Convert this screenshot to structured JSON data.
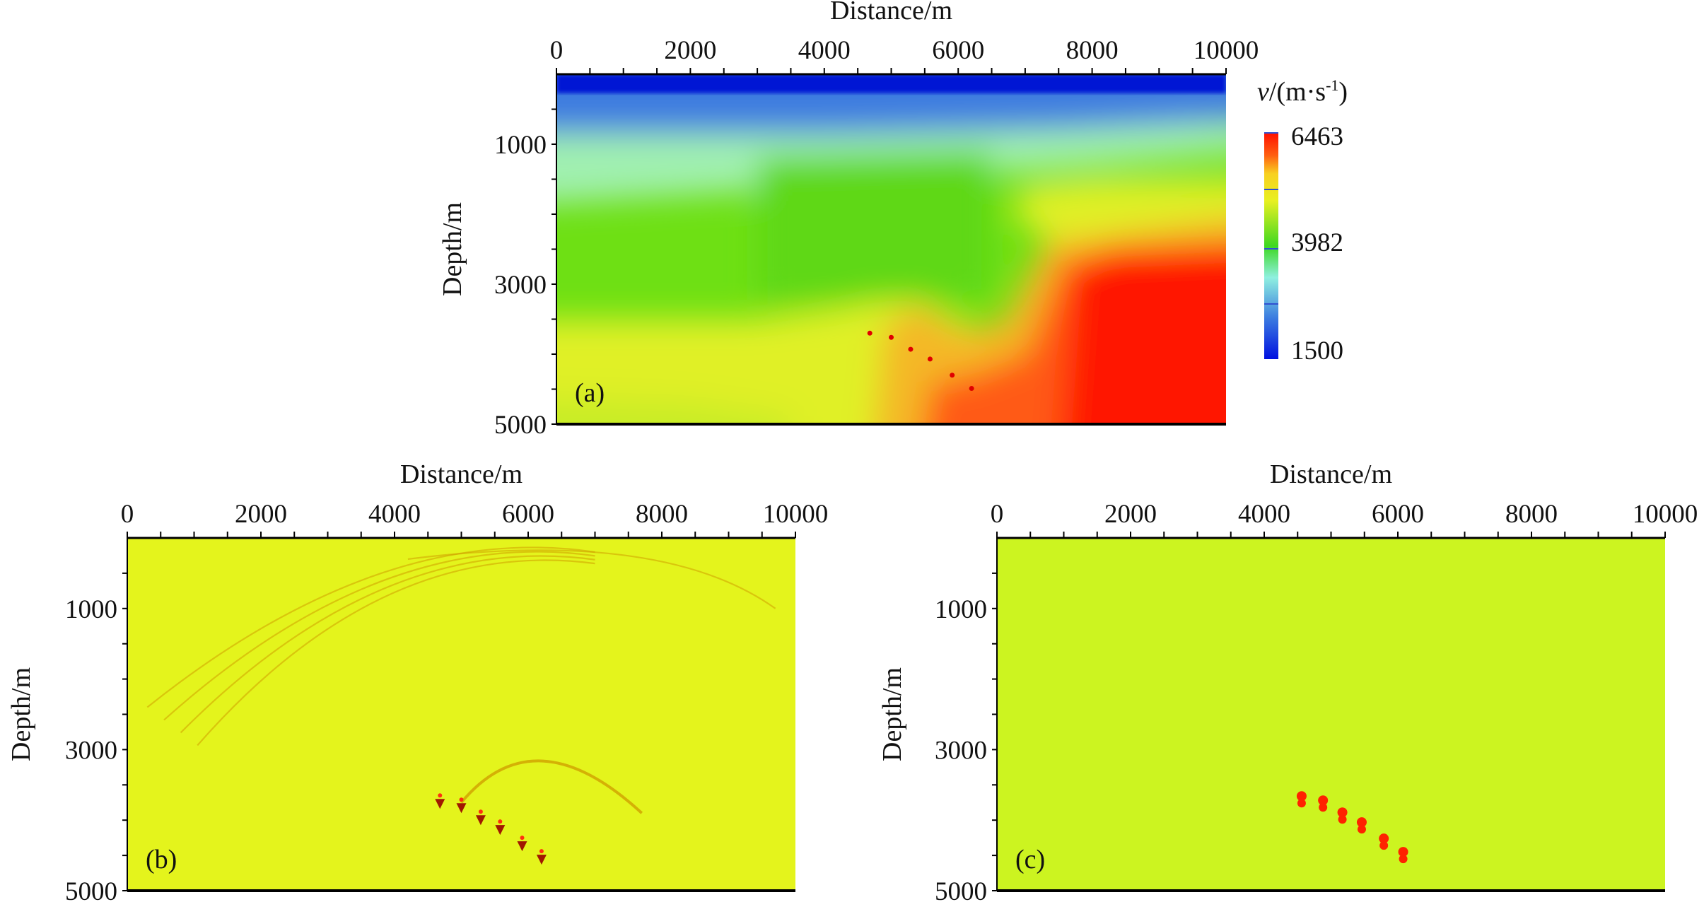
{
  "chart_data": [
    {
      "type": "heatmap",
      "panel_label": "(a)",
      "xlabel": "Distance/m",
      "ylabel": "Depth/m",
      "xlim": [
        0,
        10000
      ],
      "ylim": [
        5000,
        0
      ],
      "xticks": [
        "0",
        "2000",
        "4000",
        "6000",
        "8000",
        "10000"
      ],
      "yticks": [
        "1000",
        "3000",
        "5000"
      ],
      "colorbar": {
        "label": "v/(m·s-1)",
        "label_parts": {
          "symbol": "v",
          "unit": "/(m·s",
          "exp": "-1",
          "close": ")"
        },
        "range": [
          1500,
          6463
        ],
        "ticks": [
          "6463",
          "3982",
          "1500"
        ],
        "colors": [
          "#0010d8",
          "#3a7ae0",
          "#8ff0d0",
          "#3ed820",
          "#e8f020",
          "#f0a020",
          "#ff1a00"
        ]
      },
      "scatterers": {
        "x": [
          4680,
          5000,
          5290,
          5580,
          5910,
          6200
        ],
        "depth": [
          3700,
          3760,
          3930,
          4070,
          4300,
          4490
        ]
      }
    },
    {
      "type": "heatmap",
      "panel_label": "(b)",
      "xlabel": "Distance/m",
      "ylabel": "Depth/m",
      "xlim": [
        0,
        10000
      ],
      "ylim": [
        5000,
        0
      ],
      "xticks": [
        "0",
        "2000",
        "4000",
        "6000",
        "8000",
        "10000"
      ],
      "yticks": [
        "1000",
        "3000",
        "5000"
      ],
      "background": "#e4f41c"
    },
    {
      "type": "heatmap",
      "panel_label": "(c)",
      "xlabel": "Distance/m",
      "ylabel": "Depth/m",
      "xlim": [
        0,
        10000
      ],
      "ylim": [
        5000,
        0
      ],
      "xticks": [
        "0",
        "2000",
        "4000",
        "6000",
        "8000",
        "10000"
      ],
      "yticks": [
        "1000",
        "3000",
        "5000"
      ],
      "background": "#ccf420"
    }
  ]
}
